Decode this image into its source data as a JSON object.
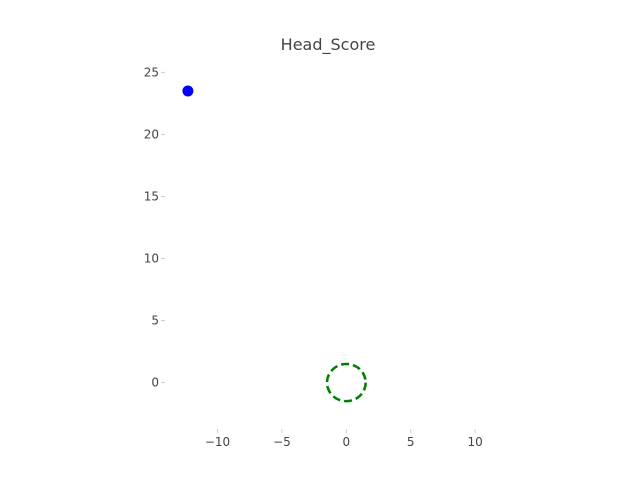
{
  "chart_data": {
    "type": "scatter",
    "title": "Head_Score",
    "xlabel": "",
    "ylabel": "",
    "xlim": [
      -14,
      11
    ],
    "ylim": [
      -3.5,
      26
    ],
    "xticks": [
      -10,
      -5,
      0,
      5,
      10
    ],
    "xtick_labels": [
      "−10",
      "−5",
      "0",
      "5",
      "10"
    ],
    "yticks": [
      0,
      5,
      10,
      15,
      20,
      25
    ],
    "ytick_labels": [
      "0",
      "5",
      "10",
      "15",
      "20",
      "25"
    ],
    "grid": false,
    "points": [
      {
        "x": -12.3,
        "y": 23.5,
        "color": "#0000ff",
        "style": "filled"
      }
    ],
    "circles": [
      {
        "x": 0,
        "y": 0,
        "radius": 1.5,
        "color": "#008000",
        "style": "dashed"
      }
    ]
  }
}
